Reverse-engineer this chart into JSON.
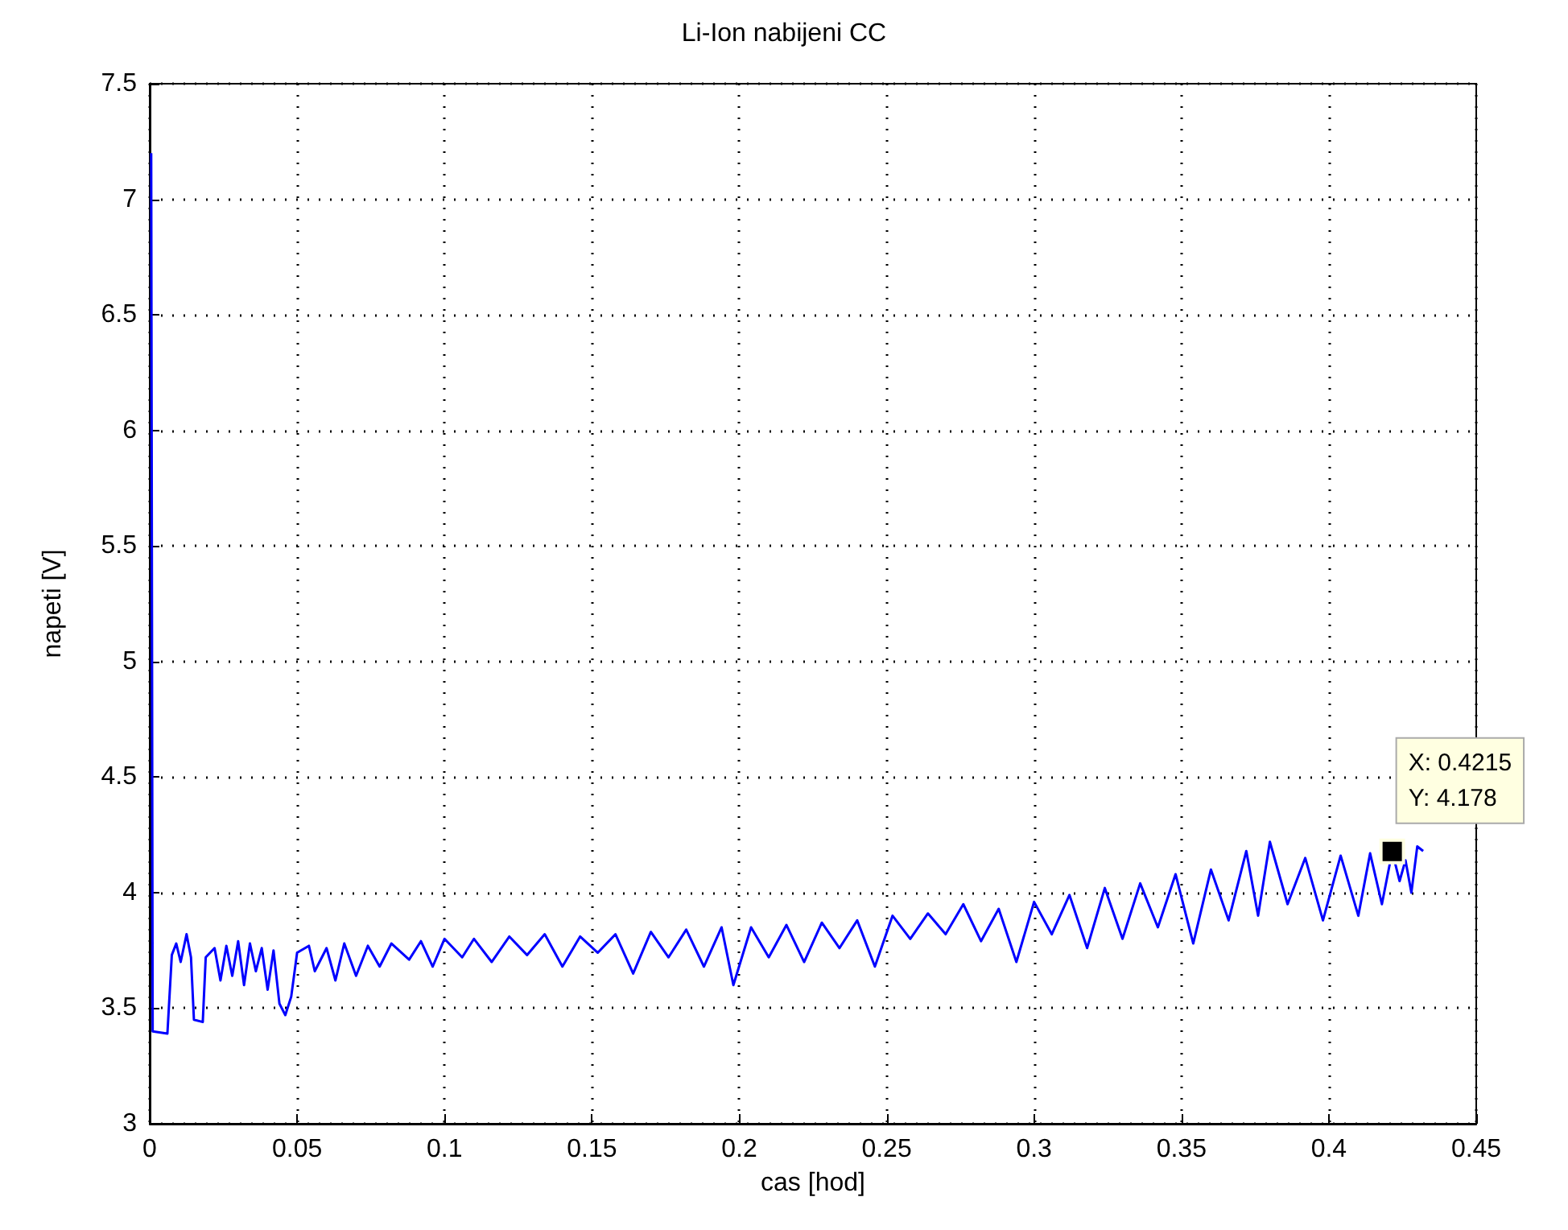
{
  "chart_data": {
    "type": "line",
    "title": "Li-Ion nabijeni CC",
    "xlabel": "cas [hod]",
    "ylabel": "napeti [V]",
    "xlim": [
      0,
      0.45
    ],
    "xticks": [
      0,
      0.05,
      0.1,
      0.15,
      0.2,
      0.25,
      0.3,
      0.35,
      0.4,
      0.45
    ],
    "ylim": [
      3,
      7.5
    ],
    "yticks": [
      3,
      3.5,
      4,
      4.5,
      5,
      5.5,
      6,
      6.5,
      7,
      7.5
    ],
    "grid": true,
    "line_style": "solid",
    "annotations": [
      {
        "text": "X: 0.4215\nY: 4.178",
        "x": 0.4215,
        "y": 4.178
      }
    ],
    "series": [
      {
        "color": "#0000ff",
        "x": [
          0.0005,
          0.001,
          0.006,
          0.0075,
          0.009,
          0.0105,
          0.0125,
          0.014,
          0.015,
          0.018,
          0.019,
          0.022,
          0.024,
          0.026,
          0.028,
          0.03,
          0.032,
          0.034,
          0.036,
          0.038,
          0.04,
          0.042,
          0.044,
          0.046,
          0.048,
          0.05,
          0.054,
          0.056,
          0.06,
          0.063,
          0.066,
          0.07,
          0.074,
          0.078,
          0.082,
          0.088,
          0.092,
          0.096,
          0.1,
          0.106,
          0.11,
          0.116,
          0.122,
          0.128,
          0.134,
          0.14,
          0.146,
          0.152,
          0.158,
          0.164,
          0.17,
          0.176,
          0.182,
          0.188,
          0.194,
          0.198,
          0.204,
          0.21,
          0.216,
          0.222,
          0.228,
          0.234,
          0.24,
          0.246,
          0.252,
          0.258,
          0.264,
          0.27,
          0.276,
          0.282,
          0.288,
          0.294,
          0.3,
          0.306,
          0.312,
          0.318,
          0.324,
          0.33,
          0.336,
          0.342,
          0.348,
          0.354,
          0.36,
          0.366,
          0.372,
          0.376,
          0.38,
          0.386,
          0.392,
          0.398,
          0.404,
          0.41,
          0.414,
          0.418,
          0.4215,
          0.424,
          0.426,
          0.428,
          0.43,
          0.432
        ],
        "values": [
          7.2,
          3.4,
          3.39,
          3.73,
          3.78,
          3.7,
          3.82,
          3.72,
          3.45,
          3.44,
          3.72,
          3.76,
          3.62,
          3.77,
          3.64,
          3.79,
          3.6,
          3.78,
          3.66,
          3.76,
          3.58,
          3.75,
          3.52,
          3.47,
          3.55,
          3.74,
          3.77,
          3.66,
          3.76,
          3.62,
          3.78,
          3.64,
          3.77,
          3.68,
          3.78,
          3.71,
          3.79,
          3.68,
          3.8,
          3.72,
          3.8,
          3.7,
          3.81,
          3.73,
          3.82,
          3.68,
          3.81,
          3.74,
          3.82,
          3.65,
          3.83,
          3.72,
          3.84,
          3.68,
          3.85,
          3.6,
          3.85,
          3.72,
          3.86,
          3.7,
          3.87,
          3.76,
          3.88,
          3.68,
          3.9,
          3.8,
          3.91,
          3.82,
          3.95,
          3.79,
          3.93,
          3.7,
          3.96,
          3.82,
          3.99,
          3.76,
          4.02,
          3.8,
          4.04,
          3.85,
          4.08,
          3.78,
          4.1,
          3.88,
          4.18,
          3.9,
          4.22,
          3.95,
          4.15,
          3.88,
          4.16,
          3.9,
          4.17,
          3.95,
          4.178,
          4.05,
          4.14,
          4.0,
          4.2,
          4.18
        ]
      }
    ]
  }
}
